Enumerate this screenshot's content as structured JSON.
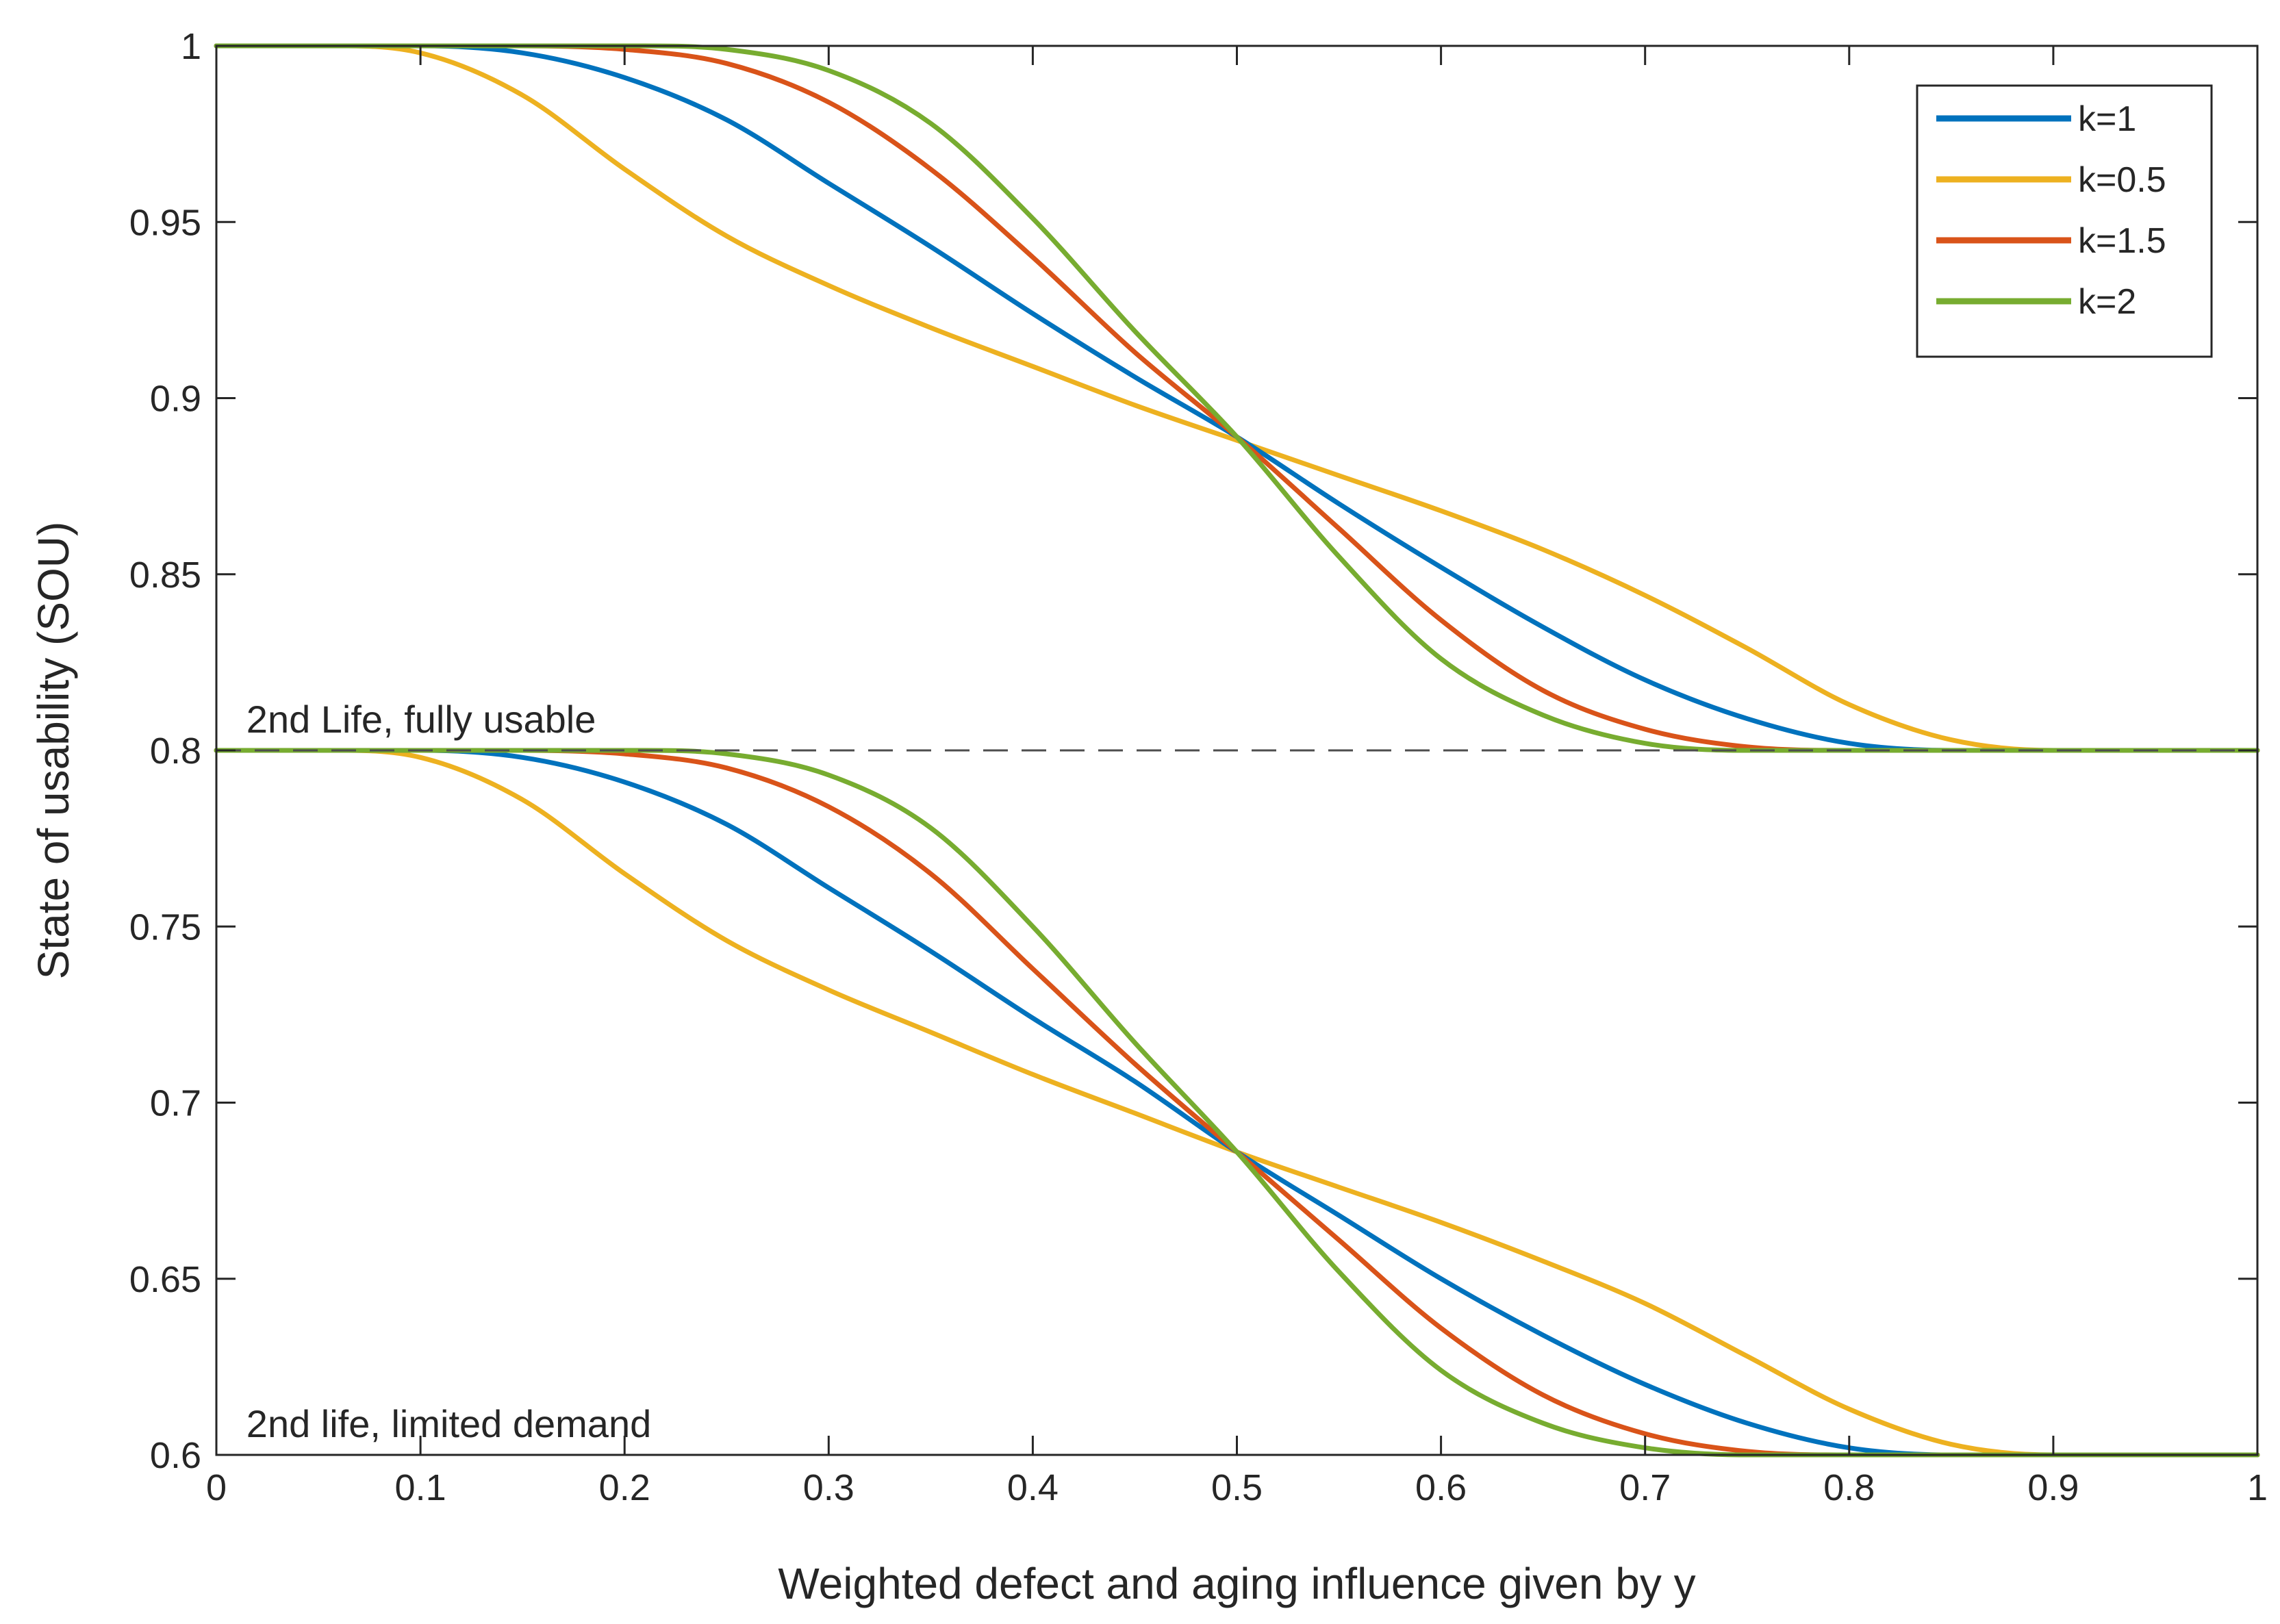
{
  "chart_data": {
    "type": "line",
    "xlabel": "Weighted defect and aging influence given by y",
    "ylabel": "State of usability (SOU)",
    "xlim": [
      0,
      1
    ],
    "ylim": [
      0.6,
      1
    ],
    "xticks": [
      "0",
      "0.1",
      "0.2",
      "0.3",
      "0.4",
      "0.5",
      "0.6",
      "0.7",
      "0.8",
      "0.9",
      "1"
    ],
    "yticks": [
      "0.6",
      "0.65",
      "0.7",
      "0.75",
      "0.8",
      "0.85",
      "0.9",
      "0.95",
      "1"
    ],
    "grid": false,
    "legend_position": "top-right",
    "series": [
      {
        "name": "k=1",
        "color": "#0072BD",
        "band": "upper",
        "x": [
          0,
          0.05,
          0.1,
          0.15,
          0.2,
          0.25,
          0.3,
          0.35,
          0.4,
          0.45,
          0.5,
          0.55,
          0.6,
          0.65,
          0.7,
          0.75,
          0.8,
          0.85,
          0.9,
          0.95,
          1
        ],
        "values": [
          1.0,
          1.0,
          1.0,
          0.998,
          0.991,
          0.979,
          0.961,
          0.943,
          0.924,
          0.906,
          0.889,
          0.87,
          0.852,
          0.835,
          0.82,
          0.809,
          0.802,
          0.8,
          0.8,
          0.8,
          0.8
        ]
      },
      {
        "name": "k=0.5",
        "color": "#EDB120",
        "band": "upper",
        "x": [
          0,
          0.05,
          0.1,
          0.15,
          0.2,
          0.25,
          0.3,
          0.35,
          0.4,
          0.45,
          0.5,
          0.55,
          0.6,
          0.65,
          0.7,
          0.75,
          0.8,
          0.85,
          0.9,
          0.95,
          1
        ],
        "values": [
          1.0,
          1.0,
          0.998,
          0.986,
          0.965,
          0.946,
          0.932,
          0.92,
          0.909,
          0.898,
          0.888,
          0.878,
          0.868,
          0.857,
          0.844,
          0.829,
          0.813,
          0.803,
          0.8,
          0.8,
          0.8
        ]
      },
      {
        "name": "k=1.5",
        "color": "#D95319",
        "band": "upper",
        "x": [
          0,
          0.05,
          0.1,
          0.15,
          0.2,
          0.25,
          0.3,
          0.35,
          0.4,
          0.45,
          0.5,
          0.55,
          0.6,
          0.65,
          0.7,
          0.75,
          0.8,
          0.85,
          0.9,
          0.95,
          1
        ],
        "values": [
          1.0,
          1.0,
          1.0,
          1.0,
          0.999,
          0.995,
          0.984,
          0.965,
          0.94,
          0.913,
          0.889,
          0.863,
          0.837,
          0.817,
          0.806,
          0.801,
          0.8,
          0.8,
          0.8,
          0.8,
          0.8
        ]
      },
      {
        "name": "k=2",
        "color": "#77AC30",
        "band": "upper",
        "x": [
          0,
          0.05,
          0.1,
          0.15,
          0.2,
          0.25,
          0.3,
          0.35,
          0.4,
          0.45,
          0.5,
          0.55,
          0.6,
          0.65,
          0.7,
          0.75,
          0.8,
          0.85,
          0.9,
          0.95,
          1
        ],
        "values": [
          1.0,
          1.0,
          1.0,
          1.0,
          1.0,
          0.999,
          0.993,
          0.978,
          0.951,
          0.919,
          0.889,
          0.855,
          0.826,
          0.81,
          0.802,
          0.8,
          0.8,
          0.8,
          0.8,
          0.8,
          0.8
        ]
      },
      {
        "name": "k=1",
        "color": "#0072BD",
        "band": "lower",
        "x": [
          0,
          0.05,
          0.1,
          0.15,
          0.2,
          0.25,
          0.3,
          0.35,
          0.4,
          0.45,
          0.5,
          0.55,
          0.6,
          0.65,
          0.7,
          0.75,
          0.8,
          0.85,
          0.9,
          0.95,
          1
        ],
        "values": [
          0.8,
          0.8,
          0.8,
          0.798,
          0.791,
          0.779,
          0.761,
          0.743,
          0.724,
          0.706,
          0.686,
          0.668,
          0.65,
          0.634,
          0.62,
          0.609,
          0.602,
          0.6,
          0.6,
          0.6,
          0.6
        ]
      },
      {
        "name": "k=0.5",
        "color": "#EDB120",
        "band": "lower",
        "x": [
          0,
          0.05,
          0.1,
          0.15,
          0.2,
          0.25,
          0.3,
          0.35,
          0.4,
          0.45,
          0.5,
          0.55,
          0.6,
          0.65,
          0.7,
          0.75,
          0.8,
          0.85,
          0.9,
          0.95,
          1
        ],
        "values": [
          0.8,
          0.8,
          0.798,
          0.786,
          0.765,
          0.746,
          0.732,
          0.72,
          0.708,
          0.697,
          0.686,
          0.676,
          0.666,
          0.655,
          0.643,
          0.628,
          0.613,
          0.603,
          0.6,
          0.6,
          0.6
        ]
      },
      {
        "name": "k=1.5",
        "color": "#D95319",
        "band": "lower",
        "x": [
          0,
          0.05,
          0.1,
          0.15,
          0.2,
          0.25,
          0.3,
          0.35,
          0.4,
          0.45,
          0.5,
          0.55,
          0.6,
          0.65,
          0.7,
          0.75,
          0.8,
          0.85,
          0.9,
          0.95,
          1
        ],
        "values": [
          0.8,
          0.8,
          0.8,
          0.8,
          0.799,
          0.795,
          0.784,
          0.765,
          0.738,
          0.711,
          0.686,
          0.661,
          0.636,
          0.617,
          0.606,
          0.601,
          0.6,
          0.6,
          0.6,
          0.6,
          0.6
        ]
      },
      {
        "name": "k=2",
        "color": "#77AC30",
        "band": "lower",
        "x": [
          0,
          0.05,
          0.1,
          0.15,
          0.2,
          0.25,
          0.3,
          0.35,
          0.4,
          0.45,
          0.5,
          0.55,
          0.6,
          0.65,
          0.7,
          0.75,
          0.8,
          0.85,
          0.9,
          0.95,
          1
        ],
        "values": [
          0.8,
          0.8,
          0.8,
          0.8,
          0.8,
          0.799,
          0.793,
          0.778,
          0.75,
          0.717,
          0.686,
          0.652,
          0.624,
          0.609,
          0.602,
          0.6,
          0.6,
          0.6,
          0.6,
          0.6,
          0.6
        ]
      }
    ],
    "legend": [
      {
        "label": "k=1",
        "color": "#0072BD"
      },
      {
        "label": "k=0.5",
        "color": "#EDB120"
      },
      {
        "label": "k=1.5",
        "color": "#D95319"
      },
      {
        "label": "k=2",
        "color": "#77AC30"
      }
    ],
    "reference_line": {
      "y": 0.8,
      "style": "dashed"
    },
    "annotations": [
      {
        "text": "2nd Life, fully usable",
        "x": 0.01,
        "y": 0.8
      },
      {
        "text": "2nd life, limited demand",
        "x": 0.01,
        "y": 0.6
      }
    ]
  }
}
